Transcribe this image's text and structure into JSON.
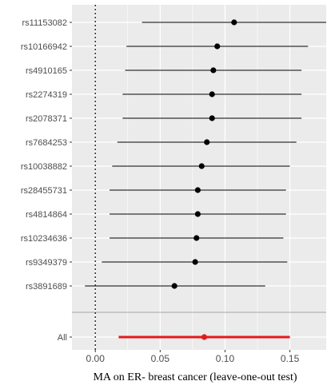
{
  "chart_data": {
    "type": "forest",
    "xlabel": "MA on ER- breast cancer (leave-one-out test)",
    "x_ticks": [
      0.0,
      0.05,
      0.1,
      0.15
    ],
    "x_tick_labels": [
      "0.00",
      "0.05",
      "0.10",
      "0.15"
    ],
    "xlim": [
      -0.018,
      0.178
    ],
    "reference_line": 0,
    "grid": true,
    "rows": [
      {
        "label": "rs11153082",
        "estimate": 0.107,
        "lower": 0.036,
        "upper": 0.178
      },
      {
        "label": "rs10166942",
        "estimate": 0.094,
        "lower": 0.024,
        "upper": 0.164
      },
      {
        "label": "rs4910165",
        "estimate": 0.091,
        "lower": 0.023,
        "upper": 0.159
      },
      {
        "label": "rs2274319",
        "estimate": 0.09,
        "lower": 0.021,
        "upper": 0.159
      },
      {
        "label": "rs2078371",
        "estimate": 0.09,
        "lower": 0.021,
        "upper": 0.159
      },
      {
        "label": "rs7684253",
        "estimate": 0.086,
        "lower": 0.017,
        "upper": 0.155
      },
      {
        "label": "rs10038882",
        "estimate": 0.082,
        "lower": 0.013,
        "upper": 0.15
      },
      {
        "label": "rs28455731",
        "estimate": 0.079,
        "lower": 0.011,
        "upper": 0.147
      },
      {
        "label": "rs4814864",
        "estimate": 0.079,
        "lower": 0.011,
        "upper": 0.147
      },
      {
        "label": "rs10234636",
        "estimate": 0.078,
        "lower": 0.011,
        "upper": 0.145
      },
      {
        "label": "rs9349379",
        "estimate": 0.077,
        "lower": 0.005,
        "upper": 0.148
      },
      {
        "label": "rs3891689",
        "estimate": 0.061,
        "lower": -0.008,
        "upper": 0.131
      }
    ],
    "summary": {
      "label": "All",
      "estimate": 0.084,
      "lower": 0.018,
      "upper": 0.15
    },
    "colors": {
      "panel": "#ebebeb",
      "grid": "#ffffff",
      "point": "#000000",
      "summary": "#e31a1c",
      "separator": "#a6a6a6"
    }
  }
}
